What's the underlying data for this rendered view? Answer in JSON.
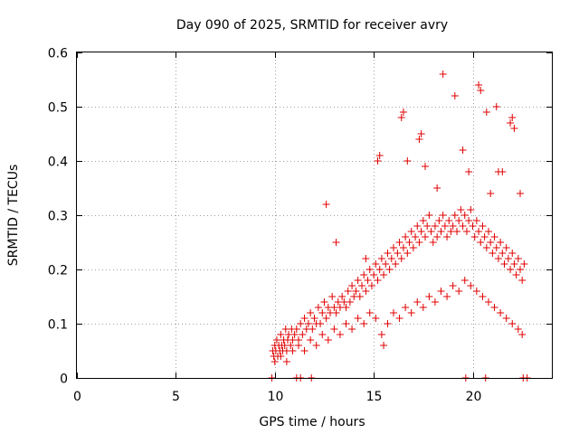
{
  "chart_data": {
    "type": "scatter",
    "title": "Day 090 of 2025, SRMTID for receiver avry",
    "xlabel": "GPS time / hours",
    "ylabel": "SRMTID / TECUs",
    "xlim": [
      0,
      24
    ],
    "ylim": [
      0,
      0.6
    ],
    "xticks": [
      0,
      5,
      10,
      15,
      20
    ],
    "xtick_labels": [
      "0",
      "5",
      "10",
      "15",
      "20"
    ],
    "yticks": [
      0,
      0.1,
      0.2,
      0.3,
      0.4,
      0.5,
      0.6
    ],
    "ytick_labels": [
      "0",
      "0.1",
      "0.2",
      "0.3",
      "0.4",
      "0.5",
      "0.6"
    ],
    "grid": true,
    "marker": "plus",
    "color": "#e00000",
    "series": [
      {
        "name": "SRMTID",
        "x": [
          9.9,
          9.95,
          10.0,
          10.05,
          10.1,
          10.15,
          10.2,
          10.25,
          10.3,
          10.35,
          10.4,
          10.45,
          10.5,
          10.55,
          10.6,
          10.65,
          10.7,
          10.8,
          10.85,
          10.9,
          11.0,
          11.1,
          11.2,
          11.3,
          11.4,
          11.5,
          11.6,
          11.7,
          11.8,
          11.9,
          12.0,
          12.1,
          12.2,
          12.3,
          12.4,
          12.5,
          12.6,
          12.7,
          12.8,
          12.9,
          13.0,
          13.1,
          13.2,
          13.3,
          13.4,
          13.5,
          13.6,
          13.7,
          13.8,
          13.9,
          14.0,
          14.1,
          14.2,
          14.3,
          14.4,
          14.5,
          14.6,
          14.7,
          14.8,
          14.9,
          15.0,
          15.1,
          15.2,
          15.3,
          15.4,
          15.5,
          15.6,
          15.7,
          15.8,
          15.9,
          16.0,
          16.1,
          16.2,
          16.3,
          16.4,
          16.5,
          16.6,
          16.7,
          16.8,
          16.9,
          17.0,
          17.1,
          17.2,
          17.3,
          17.4,
          17.5,
          17.6,
          17.7,
          17.8,
          17.9,
          18.0,
          18.1,
          18.2,
          18.3,
          18.4,
          18.5,
          18.6,
          18.7,
          18.8,
          18.9,
          19.0,
          19.1,
          19.2,
          19.3,
          19.4,
          19.5,
          19.6,
          19.7,
          19.8,
          19.9,
          20.0,
          20.1,
          20.2,
          20.3,
          20.4,
          20.5,
          20.6,
          20.7,
          20.8,
          20.9,
          21.0,
          21.1,
          21.2,
          21.3,
          21.4,
          21.5,
          21.6,
          21.7,
          21.8,
          21.9,
          22.0,
          22.1,
          22.2,
          22.3,
          22.4,
          22.5,
          22.6,
          10.0,
          10.3,
          10.6,
          10.9,
          11.2,
          11.5,
          11.8,
          12.1,
          12.4,
          12.7,
          13.0,
          13.3,
          13.6,
          13.9,
          14.2,
          14.5,
          14.8,
          15.1,
          15.4,
          15.7,
          16.0,
          16.3,
          16.6,
          16.9,
          17.2,
          17.5,
          17.8,
          18.1,
          18.4,
          18.7,
          19.0,
          19.3,
          19.6,
          19.9,
          20.2,
          20.5,
          20.8,
          21.1,
          21.4,
          21.7,
          22.0,
          22.3,
          22.5,
          12.6,
          13.1,
          14.6,
          15.2,
          15.3,
          16.4,
          16.5,
          17.3,
          17.4,
          17.6,
          18.5,
          19.1,
          19.8,
          20.3,
          20.4,
          20.7,
          21.2,
          21.5,
          21.9,
          22.0,
          22.1,
          15.5,
          16.7,
          18.2,
          19.5,
          20.9,
          21.3,
          22.4,
          9.85,
          11.1,
          11.3,
          11.85,
          19.65,
          20.65,
          22.55,
          22.75
        ],
        "y": [
          0.05,
          0.04,
          0.06,
          0.05,
          0.07,
          0.04,
          0.06,
          0.05,
          0.08,
          0.06,
          0.05,
          0.07,
          0.06,
          0.09,
          0.05,
          0.07,
          0.08,
          0.06,
          0.09,
          0.07,
          0.08,
          0.09,
          0.07,
          0.1,
          0.08,
          0.11,
          0.09,
          0.1,
          0.12,
          0.09,
          0.11,
          0.1,
          0.13,
          0.1,
          0.12,
          0.14,
          0.11,
          0.13,
          0.12,
          0.15,
          0.13,
          0.12,
          0.14,
          0.13,
          0.15,
          0.14,
          0.13,
          0.16,
          0.14,
          0.17,
          0.15,
          0.16,
          0.18,
          0.15,
          0.17,
          0.19,
          0.16,
          0.18,
          0.2,
          0.17,
          0.19,
          0.21,
          0.18,
          0.2,
          0.22,
          0.19,
          0.21,
          0.23,
          0.2,
          0.22,
          0.24,
          0.21,
          0.23,
          0.25,
          0.22,
          0.24,
          0.26,
          0.23,
          0.25,
          0.27,
          0.24,
          0.26,
          0.28,
          0.25,
          0.27,
          0.29,
          0.26,
          0.28,
          0.3,
          0.27,
          0.25,
          0.28,
          0.26,
          0.29,
          0.27,
          0.3,
          0.28,
          0.26,
          0.29,
          0.27,
          0.28,
          0.3,
          0.27,
          0.29,
          0.31,
          0.28,
          0.3,
          0.27,
          0.29,
          0.31,
          0.28,
          0.26,
          0.29,
          0.27,
          0.25,
          0.28,
          0.26,
          0.24,
          0.27,
          0.25,
          0.23,
          0.26,
          0.24,
          0.22,
          0.25,
          0.23,
          0.21,
          0.24,
          0.22,
          0.2,
          0.23,
          0.21,
          0.19,
          0.22,
          0.2,
          0.18,
          0.21,
          0.03,
          0.04,
          0.03,
          0.05,
          0.06,
          0.05,
          0.07,
          0.06,
          0.08,
          0.07,
          0.09,
          0.08,
          0.1,
          0.09,
          0.11,
          0.1,
          0.12,
          0.11,
          0.08,
          0.1,
          0.12,
          0.11,
          0.13,
          0.12,
          0.14,
          0.13,
          0.15,
          0.14,
          0.16,
          0.15,
          0.17,
          0.16,
          0.18,
          0.17,
          0.16,
          0.15,
          0.14,
          0.13,
          0.12,
          0.11,
          0.1,
          0.09,
          0.08,
          0.32,
          0.25,
          0.22,
          0.4,
          0.41,
          0.48,
          0.49,
          0.44,
          0.45,
          0.39,
          0.56,
          0.52,
          0.38,
          0.54,
          0.53,
          0.49,
          0.5,
          0.38,
          0.47,
          0.48,
          0.46,
          0.06,
          0.4,
          0.35,
          0.42,
          0.34,
          0.38,
          0.34,
          0.0,
          0.0,
          0.0,
          0.0,
          0.0,
          0.0,
          0.0,
          0.0
        ]
      }
    ]
  }
}
